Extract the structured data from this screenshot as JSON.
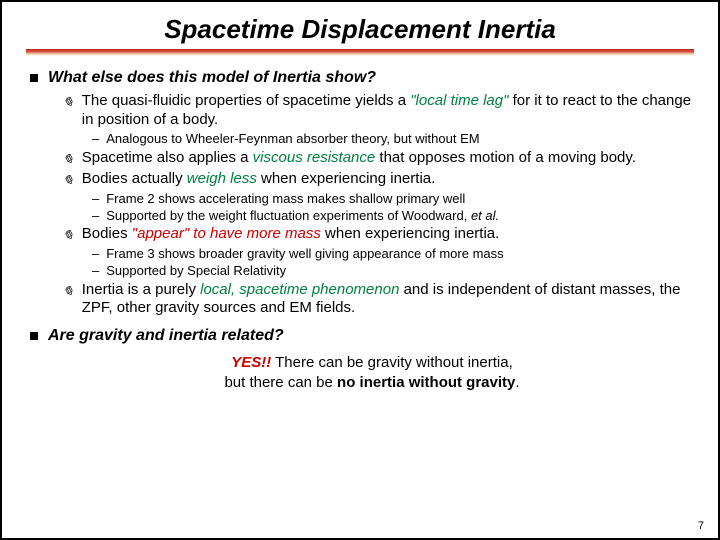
{
  "title": "Spacetime Displacement Inertia",
  "q1": "What else does this model of Inertia show?",
  "q2": "Are gravity and inertia related?",
  "b1_pre": "The quasi-fluidic properties of spacetime yields a ",
  "b1_em": "\"local time lag\"",
  "b1_post": " for it to react to the change in position of a body.",
  "b1_sub1": "Analogous to Wheeler-Feynman absorber theory, but without EM",
  "b2_pre": "Spacetime also applies a ",
  "b2_em": "viscous resistance",
  "b2_post": " that opposes motion of a moving body.",
  "b3_pre": "Bodies actually ",
  "b3_em": "weigh less",
  "b3_post": " when experiencing inertia.",
  "b3_sub1": "Frame 2 shows accelerating mass makes shallow primary well",
  "b3_sub2_pre": "Supported by the weight fluctuation experiments of Woodward, ",
  "b3_sub2_em": "et al.",
  "b4_pre": "Bodies ",
  "b4_em": "\"appear\" to have more mass",
  "b4_post": " when experiencing inertia.",
  "b4_sub1": "Frame 3 shows broader gravity well giving appearance of more mass",
  "b4_sub2": "Supported by Special Relativity",
  "b5_pre": "Inertia is a purely ",
  "b5_em": "local, spacetime phenomenon",
  "b5_post": " and is independent of distant masses, the ZPF, other gravity sources and EM fields.",
  "c1_pre": "YES!!",
  "c1_post": " There can be gravity without inertia,",
  "c2_pre": "but there can be ",
  "c2_mid": "no inertia without gravity",
  "c2_post": ".",
  "page": "7",
  "colors": {
    "green": "#008040",
    "red": "#cc0000",
    "divider_top": "#bb2222",
    "border": "#000000"
  }
}
